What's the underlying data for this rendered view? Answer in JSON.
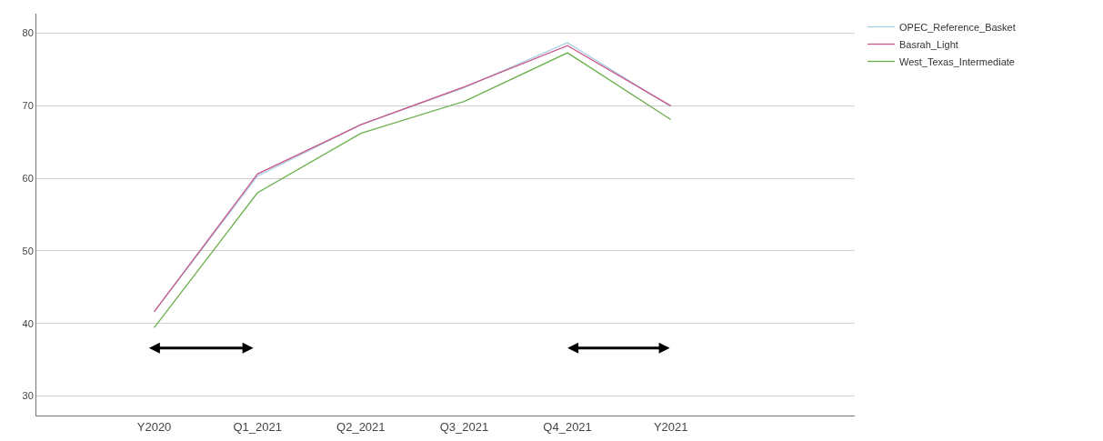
{
  "chart_data": {
    "type": "line",
    "categories": [
      "Y2020",
      "Q1_2021",
      "Q2_2021",
      "Q3_2021",
      "Q4_2021",
      "Y2021"
    ],
    "series": [
      {
        "name": "OPEC_Reference_Basket",
        "color": "#a6cee3",
        "values": [
          41.6,
          60.3,
          67.4,
          72.5,
          78.7,
          69.9
        ]
      },
      {
        "name": "Basrah_Light",
        "color": "#c9588a",
        "values": [
          41.6,
          60.6,
          67.4,
          72.6,
          78.3,
          70.0
        ]
      },
      {
        "name": "West_Texas_Intermediate",
        "color": "#6ab04c",
        "values": [
          39.4,
          58.0,
          66.2,
          70.6,
          77.3,
          68.1
        ]
      }
    ],
    "ylim": [
      27.3,
      82.7
    ],
    "yticks": [
      30,
      40,
      50,
      60,
      70,
      80
    ],
    "grid": "y",
    "legend": "top right",
    "marker": "none",
    "line_style": "solid"
  }
}
